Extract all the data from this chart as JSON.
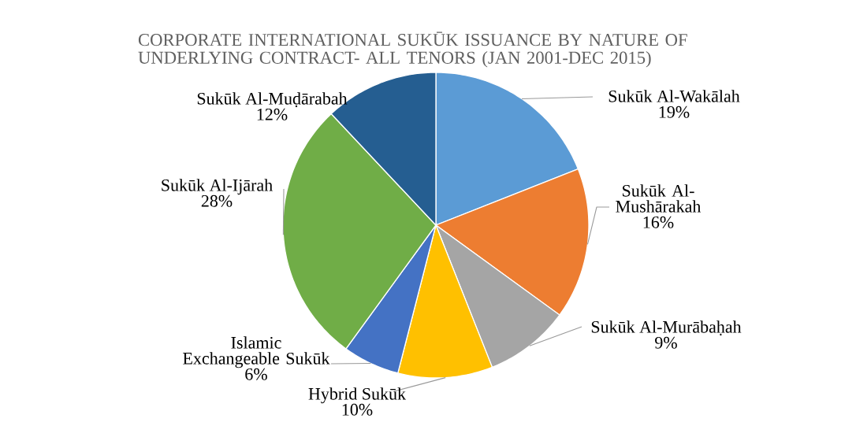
{
  "chart_data": {
    "type": "pie",
    "title": "CORPORATE INTERNATIONAL SUKŪK ISSUANCE BY NATURE OF UNDERLYING CONTRACT- ALL TENORS (JAN 2001-DEC 2015)",
    "categories": [
      "Sukūk Al-Wakālah",
      "Sukūk Al-Mushārakah",
      "Sukūk Al-Murābaḥah",
      "Hybrid Sukūk",
      "Islamic Exchangeable Sukūk",
      "Sukūk Al-Ijārah",
      "Sukūk Al-Muḍārabah"
    ],
    "values": [
      19,
      16,
      9,
      10,
      6,
      28,
      12
    ],
    "value_labels": [
      "19%",
      "16%",
      "9%",
      "10%",
      "6%",
      "28%",
      "12%"
    ],
    "colors": [
      "#5b9bd5",
      "#ed7d31",
      "#a5a5a5",
      "#ffc000",
      "#4472c4",
      "#70ad47",
      "#255e91"
    ]
  }
}
